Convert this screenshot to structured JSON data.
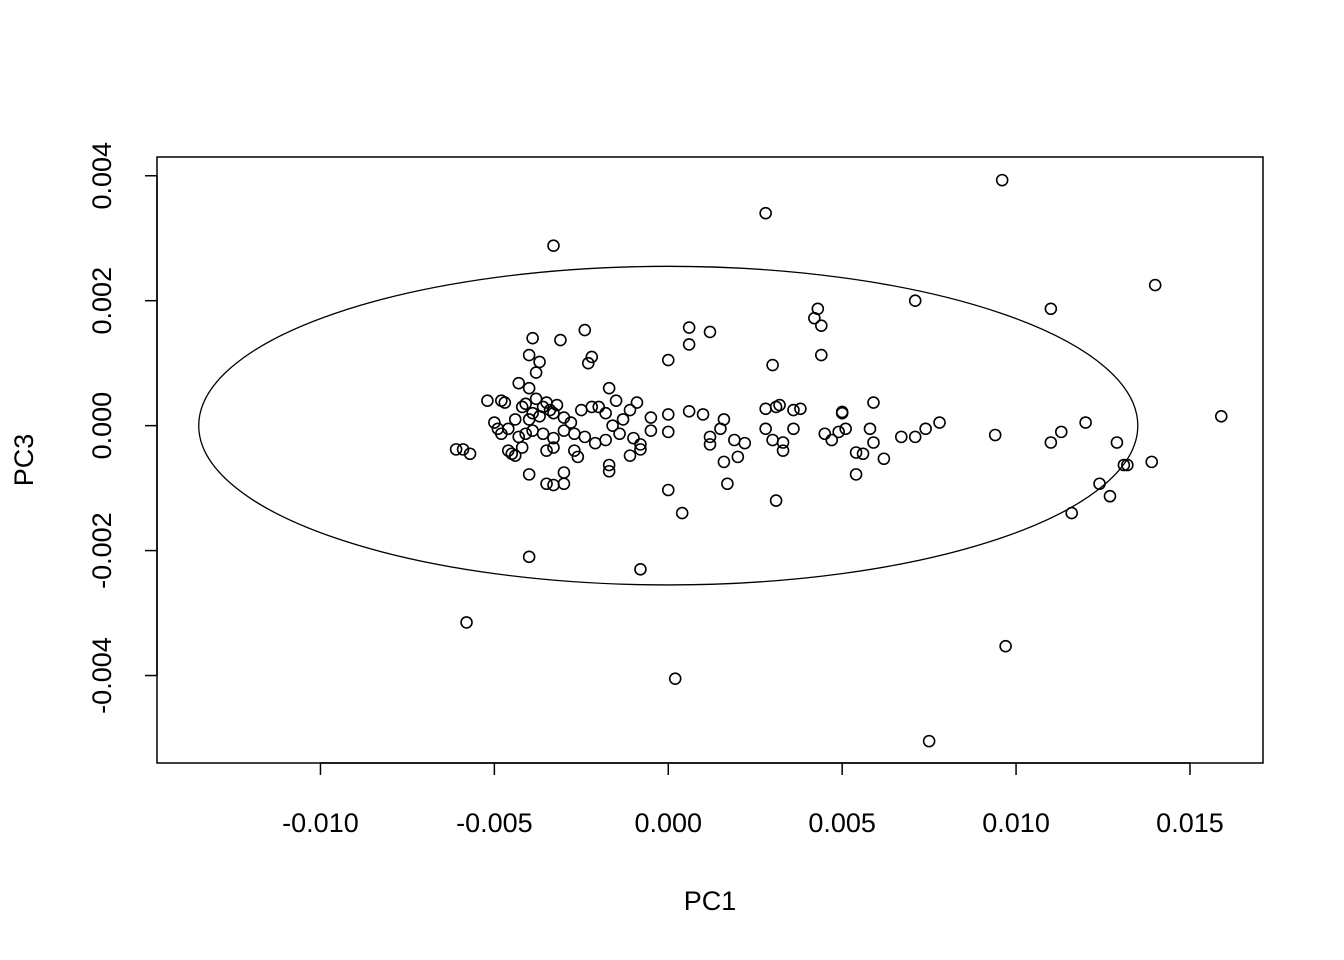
{
  "chart_data": {
    "type": "scatter",
    "xlabel": "PC1",
    "ylabel": "PC3",
    "xlim": [
      -0.0147,
      0.0171
    ],
    "ylim": [
      -0.0054,
      0.0043
    ],
    "xticks": [
      -0.01,
      -0.005,
      0.0,
      0.005,
      0.01,
      0.015
    ],
    "xtick_labels": [
      "-0.010",
      "-0.005",
      "0.000",
      "0.005",
      "0.010",
      "0.015"
    ],
    "yticks": [
      -0.004,
      -0.002,
      0.0,
      0.002,
      0.004
    ],
    "ytick_labels": [
      "-0.004",
      "-0.002",
      "0.000",
      "0.002",
      "0.004"
    ],
    "ellipse": {
      "center": [
        0.0,
        0.0
      ],
      "semi_axis_x": 0.0135,
      "semi_axis_y": 0.00255
    },
    "points": [
      [
        0.0096,
        0.00393
      ],
      [
        0.0028,
        0.0034
      ],
      [
        -0.0033,
        0.00288
      ],
      [
        0.014,
        0.00225
      ],
      [
        0.0071,
        0.002
      ],
      [
        0.011,
        0.00187
      ],
      [
        0.0043,
        0.00187
      ],
      [
        0.0042,
        0.00172
      ],
      [
        0.0044,
        0.0016
      ],
      [
        0.0006,
        0.00157
      ],
      [
        0.0012,
        0.0015
      ],
      [
        -0.0024,
        0.00153
      ],
      [
        -0.0039,
        0.0014
      ],
      [
        -0.0031,
        0.00137
      ],
      [
        0.0006,
        0.0013
      ],
      [
        0.0044,
        0.00113
      ],
      [
        -0.004,
        0.00113
      ],
      [
        -0.0022,
        0.0011
      ],
      [
        -0.0037,
        0.00102
      ],
      [
        -0.0023,
        0.001
      ],
      [
        0.0,
        0.00105
      ],
      [
        0.003,
        0.00097
      ],
      [
        -0.0038,
        0.00085
      ],
      [
        -0.0043,
        0.00068
      ],
      [
        -0.0017,
        0.0006
      ],
      [
        -0.004,
        0.0006
      ],
      [
        -0.0038,
        0.00043
      ],
      [
        -0.0035,
        0.00037
      ],
      [
        -0.0032,
        0.00033
      ],
      [
        -0.0015,
        0.0004
      ],
      [
        -0.0052,
        0.0004
      ],
      [
        -0.0048,
        0.0004
      ],
      [
        -0.0047,
        0.00037
      ],
      [
        -0.0041,
        0.00035
      ],
      [
        -0.0036,
        0.0003
      ],
      [
        -0.0033,
        0.0002
      ],
      [
        -0.0034,
        0.00025
      ],
      [
        -0.0042,
        0.0003
      ],
      [
        -0.0039,
        0.0002
      ],
      [
        -0.0044,
        0.0001
      ],
      [
        -0.004,
        0.0001
      ],
      [
        -0.0037,
        0.00015
      ],
      [
        -0.003,
        0.00013
      ],
      [
        -0.0028,
        5e-05
      ],
      [
        -0.0025,
        0.00025
      ],
      [
        -0.0022,
        0.0003
      ],
      [
        -0.002,
        0.0003
      ],
      [
        -0.0018,
        0.0002
      ],
      [
        -0.0016,
        0.0
      ],
      [
        -0.0013,
        0.0001
      ],
      [
        -0.0011,
        0.00025
      ],
      [
        -0.0009,
        0.00037
      ],
      [
        -0.0005,
        0.00013
      ],
      [
        0.0,
        0.00018
      ],
      [
        0.0006,
        0.00023
      ],
      [
        0.001,
        0.00018
      ],
      [
        0.0016,
        0.0001
      ],
      [
        0.0028,
        0.00027
      ],
      [
        0.0031,
        0.0003
      ],
      [
        0.0032,
        0.00033
      ],
      [
        0.0036,
        0.00025
      ],
      [
        0.0038,
        0.00027
      ],
      [
        0.005,
        0.00022
      ],
      [
        0.005,
        0.0002
      ],
      [
        0.0059,
        0.00037
      ],
      [
        0.0078,
        5e-05
      ],
      [
        0.012,
        5e-05
      ],
      [
        0.0159,
        0.00015
      ],
      [
        -0.005,
        5e-05
      ],
      [
        -0.0049,
        -5e-05
      ],
      [
        -0.0048,
        -0.00013
      ],
      [
        -0.0046,
        -5e-05
      ],
      [
        -0.0043,
        -0.00018
      ],
      [
        -0.0041,
        -0.00013
      ],
      [
        -0.0039,
        -8e-05
      ],
      [
        -0.0036,
        -0.00013
      ],
      [
        -0.0033,
        -0.0002
      ],
      [
        -0.003,
        -8e-05
      ],
      [
        -0.0027,
        -0.00013
      ],
      [
        -0.0024,
        -0.00018
      ],
      [
        -0.0021,
        -0.00028
      ],
      [
        -0.0018,
        -0.00023
      ],
      [
        -0.0014,
        -0.00013
      ],
      [
        -0.001,
        -0.0002
      ],
      [
        -0.0008,
        -0.0003
      ],
      [
        -0.0005,
        -8e-05
      ],
      [
        0.0,
        -0.0001
      ],
      [
        0.0012,
        -0.00018
      ],
      [
        0.0015,
        -5e-05
      ],
      [
        0.0019,
        -0.00023
      ],
      [
        0.0022,
        -0.00028
      ],
      [
        0.0028,
        -5e-05
      ],
      [
        0.003,
        -0.00023
      ],
      [
        0.0033,
        -0.00027
      ],
      [
        0.0036,
        -5e-05
      ],
      [
        0.0045,
        -0.00013
      ],
      [
        0.0047,
        -0.00023
      ],
      [
        0.0049,
        -0.0001
      ],
      [
        0.0051,
        -5e-05
      ],
      [
        0.0058,
        -5e-05
      ],
      [
        0.0059,
        -0.00027
      ],
      [
        0.0067,
        -0.00018
      ],
      [
        0.0071,
        -0.00018
      ],
      [
        0.0074,
        -5e-05
      ],
      [
        0.0094,
        -0.00015
      ],
      [
        0.011,
        -0.00027
      ],
      [
        0.0113,
        -0.0001
      ],
      [
        0.0129,
        -0.00027
      ],
      [
        -0.0061,
        -0.00038
      ],
      [
        -0.0059,
        -0.00038
      ],
      [
        -0.0057,
        -0.00045
      ],
      [
        -0.0046,
        -0.0004
      ],
      [
        -0.0044,
        -0.00048
      ],
      [
        -0.0045,
        -0.00045
      ],
      [
        -0.0042,
        -0.00035
      ],
      [
        -0.0035,
        -0.0004
      ],
      [
        -0.0033,
        -0.00035
      ],
      [
        -0.0027,
        -0.0004
      ],
      [
        -0.0026,
        -0.0005
      ],
      [
        -0.0017,
        -0.00063
      ],
      [
        -0.0011,
        -0.00048
      ],
      [
        -0.0008,
        -0.00038
      ],
      [
        0.0012,
        -0.0003
      ],
      [
        0.002,
        -0.0005
      ],
      [
        0.0033,
        -0.0004
      ],
      [
        0.0054,
        -0.00043
      ],
      [
        0.0056,
        -0.00045
      ],
      [
        0.0062,
        -0.00053
      ],
      [
        0.0131,
        -0.00063
      ],
      [
        0.0132,
        -0.00063
      ],
      [
        0.0139,
        -0.00058
      ],
      [
        -0.004,
        -0.00078
      ],
      [
        -0.003,
        -0.00075
      ],
      [
        -0.0017,
        -0.00073
      ],
      [
        0.0016,
        -0.00058
      ],
      [
        0.0054,
        -0.00078
      ],
      [
        0.0124,
        -0.00093
      ],
      [
        -0.0035,
        -0.00093
      ],
      [
        -0.0033,
        -0.00095
      ],
      [
        -0.003,
        -0.00093
      ],
      [
        0.0017,
        -0.00093
      ],
      [
        0.0,
        -0.00103
      ],
      [
        0.0031,
        -0.0012
      ],
      [
        0.0127,
        -0.00113
      ],
      [
        0.0004,
        -0.0014
      ],
      [
        0.0116,
        -0.0014
      ],
      [
        -0.004,
        -0.0021
      ],
      [
        -0.0008,
        -0.0023
      ],
      [
        -0.0058,
        -0.00315
      ],
      [
        0.0097,
        -0.00353
      ],
      [
        0.0002,
        -0.00405
      ],
      [
        0.0075,
        -0.00505
      ]
    ]
  }
}
